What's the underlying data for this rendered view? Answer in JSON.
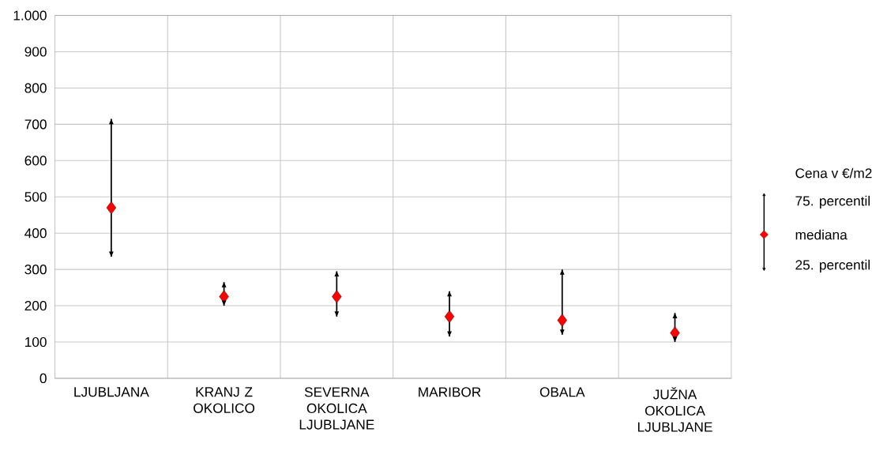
{
  "chart_data": {
    "type": "scatter",
    "legend_title": "Cena v €/m2",
    "categories": [
      "LJUBLJANA",
      "KRANJ Z OKOLICO",
      "SEVERNA OKOLICA LJUBLJANE",
      "MARIBOR",
      "OBALA",
      "JUŽNA OKOLICA LJUBLJANE"
    ],
    "series": [
      {
        "name": "mediana",
        "color": "#ff0000",
        "values": [
          470,
          225,
          225,
          170,
          160,
          125
        ],
        "errors": [
          [
            335,
            715
          ],
          [
            200,
            265
          ],
          [
            170,
            295
          ],
          [
            115,
            240
          ],
          [
            120,
            300
          ],
          [
            100,
            180
          ]
        ]
      }
    ],
    "annotations": [
      "75. percentil",
      "25. percentil"
    ],
    "ylim": [
      0,
      1000
    ],
    "yticks": [
      0,
      100,
      200,
      300,
      400,
      500,
      600,
      700,
      800,
      900,
      {
        "value": 1000,
        "label": "1.000"
      }
    ],
    "grid": true,
    "legend": "right",
    "marker": "diamond"
  }
}
